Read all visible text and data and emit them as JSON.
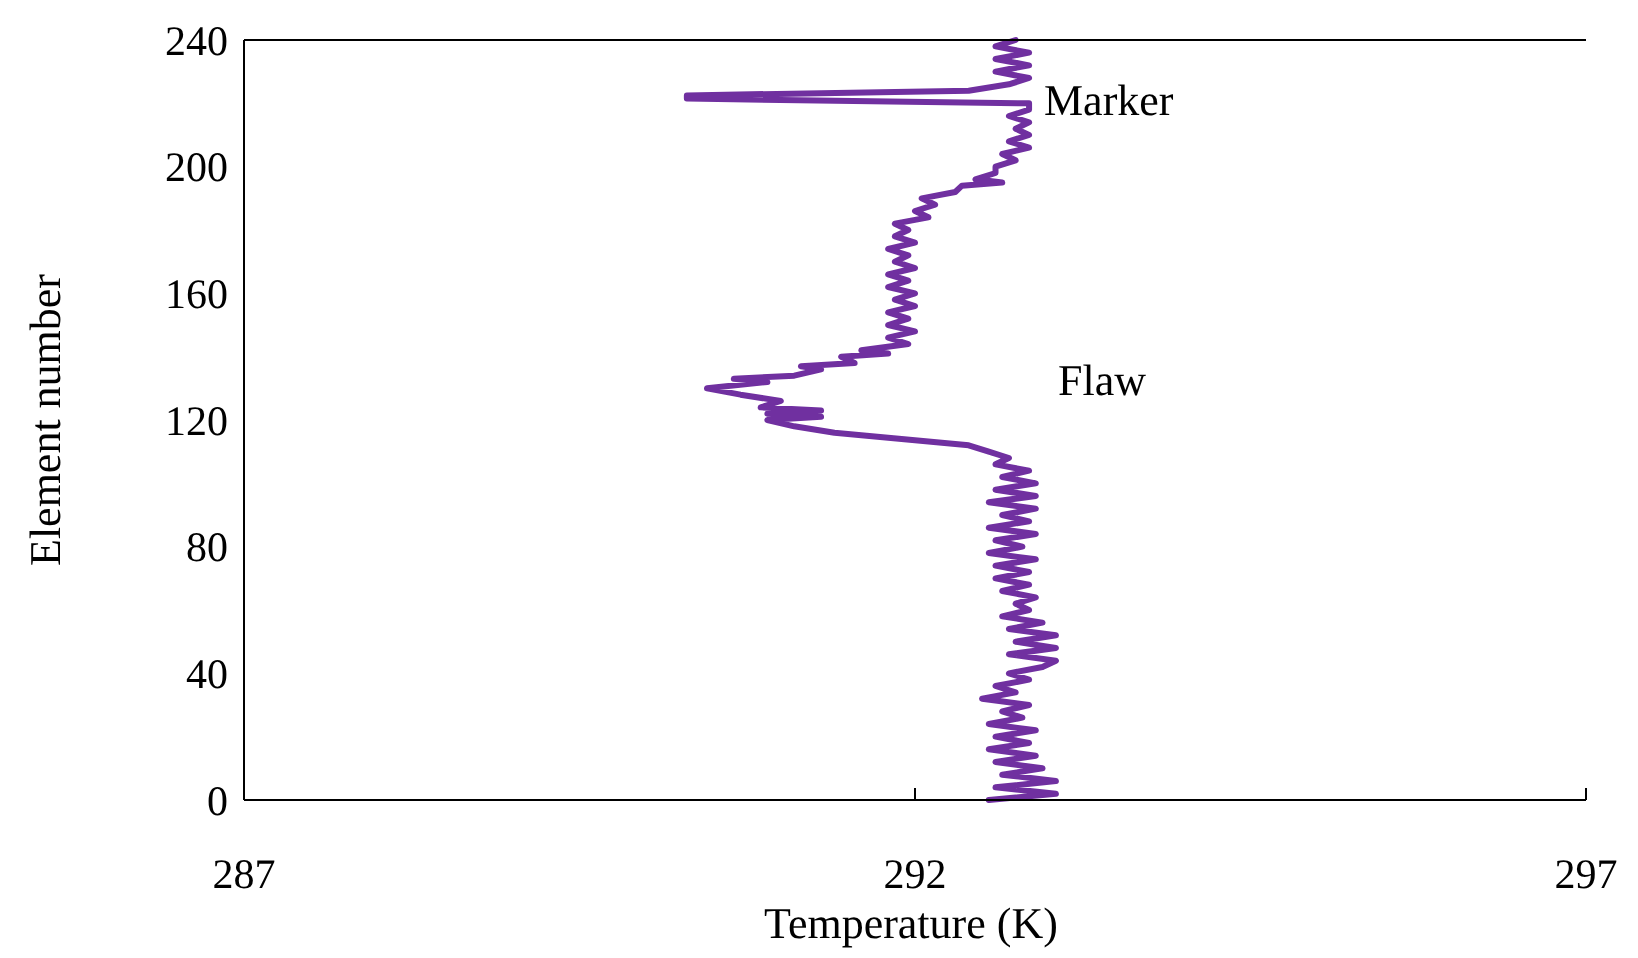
{
  "chart_data": {
    "type": "line",
    "xlabel": "Temperature (K)",
    "ylabel": "Element number",
    "xlim": [
      287,
      297
    ],
    "xticks": [
      287,
      292,
      297
    ],
    "ylim": [
      0,
      240
    ],
    "yticks": [
      0,
      40,
      80,
      120,
      160,
      200,
      240
    ],
    "grid": false,
    "marker": "none",
    "line_style": "solid",
    "annotations": [
      "Marker",
      "Flaw"
    ],
    "series": [
      {
        "color": "#7030a0",
        "x": [
          292.55,
          293.05,
          292.6,
          293.05,
          292.65,
          292.95,
          292.6,
          292.9,
          292.55,
          292.85,
          292.6,
          292.9,
          292.55,
          292.8,
          292.65,
          292.85,
          292.5,
          292.75,
          292.6,
          292.85,
          292.7,
          292.95,
          293.05,
          292.7,
          293.05,
          292.75,
          293.05,
          292.7,
          292.95,
          292.65,
          292.85,
          292.75,
          292.9,
          292.65,
          292.85,
          292.6,
          292.85,
          292.6,
          292.9,
          292.55,
          292.8,
          292.6,
          292.9,
          292.55,
          292.85,
          292.65,
          292.9,
          292.55,
          292.9,
          292.6,
          292.9,
          292.65,
          292.85,
          292.6,
          292.7,
          292.55,
          292.4,
          291.9,
          291.4,
          291.1,
          290.9,
          291.3,
          290.9,
          291.3,
          290.85,
          291.0,
          290.7,
          290.45,
          290.9,
          290.65,
          291.1,
          291.3,
          291.15,
          291.55,
          291.45,
          291.8,
          291.6,
          291.95,
          291.8,
          292.0,
          291.8,
          291.95,
          291.8,
          292.0,
          291.85,
          292.0,
          291.8,
          291.95,
          291.8,
          292.0,
          291.85,
          291.95,
          291.8,
          292.0,
          291.85,
          291.95,
          291.85,
          292.1,
          292.0,
          292.15,
          292.05,
          292.3,
          292.35,
          292.65,
          292.45,
          292.6,
          292.6,
          292.75,
          292.65,
          292.85,
          292.7,
          292.85,
          292.75,
          292.85,
          292.7,
          292.85,
          292.85,
          290.3,
          290.3,
          292.4,
          292.7,
          292.85,
          292.6,
          292.85,
          292.6,
          292.85,
          292.6,
          292.75
        ],
        "values": [
          0,
          2,
          4,
          6,
          8,
          10,
          12,
          14,
          16,
          18,
          20,
          22,
          24,
          26,
          28,
          30,
          32,
          34,
          36,
          38,
          40,
          42,
          44,
          46,
          48,
          50,
          52,
          54,
          56,
          58,
          60,
          62,
          64,
          66,
          68,
          70,
          72,
          74,
          76,
          78,
          80,
          82,
          84,
          86,
          88,
          90,
          92,
          94,
          96,
          98,
          100,
          102,
          104,
          106,
          108,
          110,
          112,
          114,
          116,
          118,
          120,
          121,
          122,
          123,
          124,
          126,
          128,
          130,
          132,
          133,
          134,
          136,
          137,
          138,
          140,
          141,
          142,
          144,
          146,
          148,
          150,
          152,
          154,
          156,
          158,
          160,
          162,
          164,
          166,
          168,
          170,
          172,
          174,
          176,
          178,
          180,
          182,
          184,
          186,
          188,
          190,
          192,
          194,
          195,
          196,
          198,
          200,
          202,
          204,
          206,
          208,
          210,
          212,
          214,
          216,
          218,
          220,
          221.5,
          222.5,
          224,
          226,
          228,
          230,
          232,
          234,
          236,
          238,
          240
        ]
      }
    ]
  }
}
